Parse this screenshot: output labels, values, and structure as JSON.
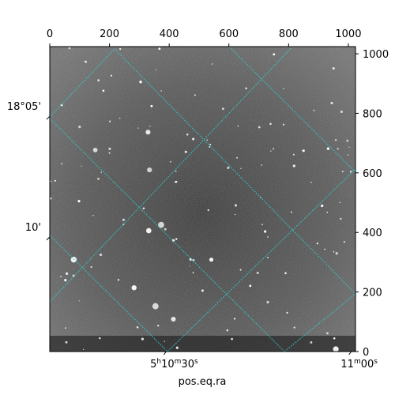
{
  "figure": {
    "xlabel": "pos.eq.ra",
    "grid_color": "#2fd0d0",
    "top_ticks": [
      {
        "label": "0",
        "value": 0
      },
      {
        "label": "200",
        "value": 200
      },
      {
        "label": "400",
        "value": 400
      },
      {
        "label": "600",
        "value": 600
      },
      {
        "label": "800",
        "value": 800
      },
      {
        "label": "1000",
        "value": 1000
      }
    ],
    "right_ticks": [
      {
        "label": "0",
        "value": 0
      },
      {
        "label": "200",
        "value": 200
      },
      {
        "label": "400",
        "value": 400
      },
      {
        "label": "600",
        "value": 600
      },
      {
        "label": "800",
        "value": 800
      },
      {
        "label": "1000",
        "value": 1000
      }
    ],
    "pixel_range": [
      0,
      1024
    ],
    "left_labels": [
      {
        "label": "18°05'",
        "value": 790
      },
      {
        "label": "10'",
        "value": 385
      }
    ],
    "bottom_labels": [
      {
        "label": "5h10m30s",
        "value": 390
      },
      {
        "label": "11m00s",
        "value": 1010
      }
    ]
  }
}
